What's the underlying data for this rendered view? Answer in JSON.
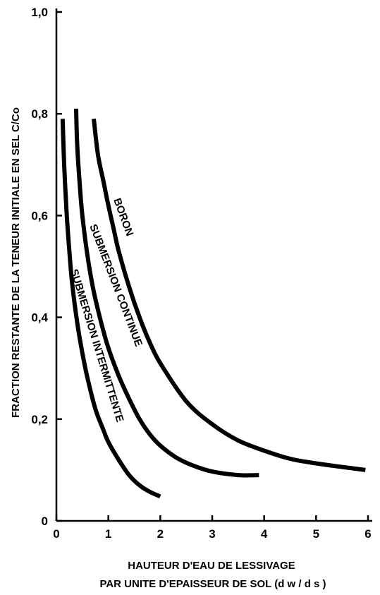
{
  "chart_data": {
    "type": "line",
    "xlabel_lines": [
      "HAUTEUR D'EAU DE LESSIVAGE",
      "PAR UNITE D'EPAISSEUR DE SOL (d w / d s )"
    ],
    "ylabel": "FRACTION RESTANTE DE LA TENEUR INITIALE EN SEL C/Co",
    "xlim": [
      0,
      6
    ],
    "ylim": [
      0,
      1.0
    ],
    "x_ticks": [
      "0",
      "1",
      "2",
      "3",
      "4",
      "5",
      "6"
    ],
    "y_ticks": [
      "0",
      "0,2",
      "0,4",
      "0,6",
      "0,8",
      "1,0"
    ],
    "grid": false,
    "series": [
      {
        "name": "SUBMERSION INTERMITTENTE",
        "x": [
          0.12,
          0.15,
          0.2,
          0.25,
          0.3,
          0.4,
          0.5,
          0.6,
          0.75,
          0.9,
          1.0,
          1.2,
          1.4,
          1.6,
          1.8,
          2.0
        ],
        "y": [
          0.79,
          0.7,
          0.6,
          0.53,
          0.47,
          0.39,
          0.33,
          0.28,
          0.22,
          0.18,
          0.155,
          0.12,
          0.09,
          0.07,
          0.057,
          0.048
        ]
      },
      {
        "name": "SUBMERSION CONTINUE",
        "x": [
          0.38,
          0.4,
          0.45,
          0.5,
          0.6,
          0.7,
          0.8,
          0.9,
          1.0,
          1.2,
          1.4,
          1.6,
          1.8,
          2.0,
          2.3,
          2.6,
          3.0,
          3.5,
          3.9
        ],
        "y": [
          0.81,
          0.74,
          0.66,
          0.6,
          0.52,
          0.46,
          0.415,
          0.375,
          0.34,
          0.285,
          0.24,
          0.2,
          0.17,
          0.148,
          0.125,
          0.11,
          0.097,
          0.09,
          0.09
        ]
      },
      {
        "name": "BORON",
        "x": [
          0.72,
          0.8,
          0.9,
          1.0,
          1.1,
          1.2,
          1.4,
          1.6,
          1.8,
          2.0,
          2.5,
          3.0,
          3.5,
          4.0,
          4.5,
          5.0,
          5.5,
          5.95
        ],
        "y": [
          0.79,
          0.72,
          0.67,
          0.62,
          0.575,
          0.53,
          0.46,
          0.4,
          0.35,
          0.31,
          0.235,
          0.19,
          0.158,
          0.138,
          0.122,
          0.113,
          0.106,
          0.1
        ]
      }
    ]
  }
}
